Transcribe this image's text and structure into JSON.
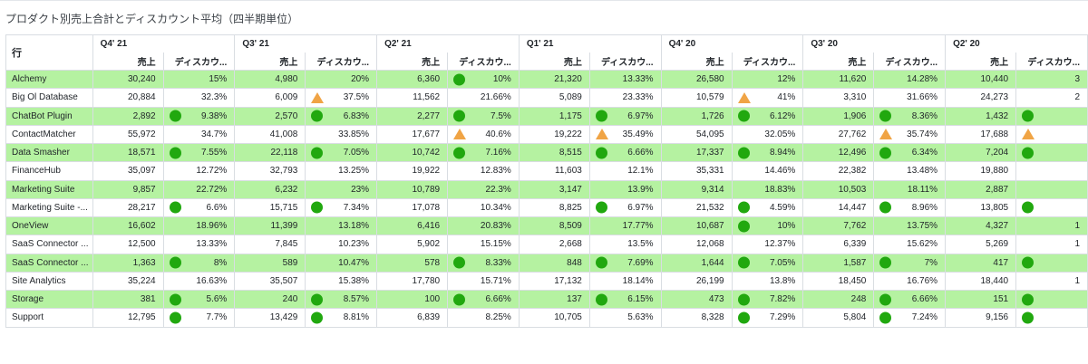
{
  "title": "プロダクト別売上合計とディスカウント平均（四半期単位）",
  "row_header": "行",
  "metric_labels": {
    "sales": "売上",
    "discount": "ディスカウ..."
  },
  "quarters": [
    "Q4' 21",
    "Q3' 21",
    "Q2' 21",
    "Q1' 21",
    "Q4' 20",
    "Q3' 20",
    "Q2' 20"
  ],
  "colors": {
    "row_highlight": "#b5f2a1",
    "good": "#21a80f",
    "warn": "#f0a445"
  },
  "rows": [
    {
      "label": "Alchemy",
      "highlight": true,
      "cells": [
        {
          "sales": "30,240",
          "disc": "15%",
          "icon": null
        },
        {
          "sales": "4,980",
          "disc": "20%",
          "icon": null
        },
        {
          "sales": "6,360",
          "disc": "10%",
          "icon": "good"
        },
        {
          "sales": "21,320",
          "disc": "13.33%",
          "icon": null
        },
        {
          "sales": "26,580",
          "disc": "12%",
          "icon": null
        },
        {
          "sales": "11,620",
          "disc": "14.28%",
          "icon": null
        },
        {
          "sales": "10,440",
          "disc": "3",
          "icon": null
        }
      ]
    },
    {
      "label": "Big Ol Database",
      "highlight": false,
      "cells": [
        {
          "sales": "20,884",
          "disc": "32.3%",
          "icon": null
        },
        {
          "sales": "6,009",
          "disc": "37.5%",
          "icon": "warn"
        },
        {
          "sales": "11,562",
          "disc": "21.66%",
          "icon": null
        },
        {
          "sales": "5,089",
          "disc": "23.33%",
          "icon": null
        },
        {
          "sales": "10,579",
          "disc": "41%",
          "icon": "warn"
        },
        {
          "sales": "3,310",
          "disc": "31.66%",
          "icon": null
        },
        {
          "sales": "24,273",
          "disc": "2",
          "icon": null
        }
      ]
    },
    {
      "label": "ChatBot Plugin",
      "highlight": true,
      "cells": [
        {
          "sales": "2,892",
          "disc": "9.38%",
          "icon": "good"
        },
        {
          "sales": "2,570",
          "disc": "6.83%",
          "icon": "good"
        },
        {
          "sales": "2,277",
          "disc": "7.5%",
          "icon": "good"
        },
        {
          "sales": "1,175",
          "disc": "6.97%",
          "icon": "good"
        },
        {
          "sales": "1,726",
          "disc": "6.12%",
          "icon": "good"
        },
        {
          "sales": "1,906",
          "disc": "8.36%",
          "icon": "good"
        },
        {
          "sales": "1,432",
          "disc": "",
          "icon": "good"
        }
      ]
    },
    {
      "label": "ContactMatcher",
      "highlight": false,
      "cells": [
        {
          "sales": "55,972",
          "disc": "34.7%",
          "icon": null
        },
        {
          "sales": "41,008",
          "disc": "33.85%",
          "icon": null
        },
        {
          "sales": "17,677",
          "disc": "40.6%",
          "icon": "warn"
        },
        {
          "sales": "19,222",
          "disc": "35.49%",
          "icon": "warn"
        },
        {
          "sales": "54,095",
          "disc": "32.05%",
          "icon": null
        },
        {
          "sales": "27,762",
          "disc": "35.74%",
          "icon": "warn"
        },
        {
          "sales": "17,688",
          "disc": "",
          "icon": "warn"
        }
      ]
    },
    {
      "label": "Data Smasher",
      "highlight": true,
      "cells": [
        {
          "sales": "18,571",
          "disc": "7.55%",
          "icon": "good"
        },
        {
          "sales": "22,118",
          "disc": "7.05%",
          "icon": "good"
        },
        {
          "sales": "10,742",
          "disc": "7.16%",
          "icon": "good"
        },
        {
          "sales": "8,515",
          "disc": "6.66%",
          "icon": "good"
        },
        {
          "sales": "17,337",
          "disc": "8.94%",
          "icon": "good"
        },
        {
          "sales": "12,496",
          "disc": "6.34%",
          "icon": "good"
        },
        {
          "sales": "7,204",
          "disc": "",
          "icon": "good"
        }
      ]
    },
    {
      "label": "FinanceHub",
      "highlight": false,
      "cells": [
        {
          "sales": "35,097",
          "disc": "12.72%",
          "icon": null
        },
        {
          "sales": "32,793",
          "disc": "13.25%",
          "icon": null
        },
        {
          "sales": "19,922",
          "disc": "12.83%",
          "icon": null
        },
        {
          "sales": "11,603",
          "disc": "12.1%",
          "icon": null
        },
        {
          "sales": "35,331",
          "disc": "14.46%",
          "icon": null
        },
        {
          "sales": "22,382",
          "disc": "13.48%",
          "icon": null
        },
        {
          "sales": "19,880",
          "disc": "",
          "icon": null
        }
      ]
    },
    {
      "label": "Marketing Suite",
      "highlight": true,
      "cells": [
        {
          "sales": "9,857",
          "disc": "22.72%",
          "icon": null
        },
        {
          "sales": "6,232",
          "disc": "23%",
          "icon": null
        },
        {
          "sales": "10,789",
          "disc": "22.3%",
          "icon": null
        },
        {
          "sales": "3,147",
          "disc": "13.9%",
          "icon": null
        },
        {
          "sales": "9,314",
          "disc": "18.83%",
          "icon": null
        },
        {
          "sales": "10,503",
          "disc": "18.11%",
          "icon": null
        },
        {
          "sales": "2,887",
          "disc": "",
          "icon": null
        }
      ]
    },
    {
      "label": "Marketing Suite -...",
      "highlight": false,
      "cells": [
        {
          "sales": "28,217",
          "disc": "6.6%",
          "icon": "good"
        },
        {
          "sales": "15,715",
          "disc": "7.34%",
          "icon": "good"
        },
        {
          "sales": "17,078",
          "disc": "10.34%",
          "icon": null
        },
        {
          "sales": "8,825",
          "disc": "6.97%",
          "icon": "good"
        },
        {
          "sales": "21,532",
          "disc": "4.59%",
          "icon": "good"
        },
        {
          "sales": "14,447",
          "disc": "8.96%",
          "icon": "good"
        },
        {
          "sales": "13,805",
          "disc": "",
          "icon": "good"
        }
      ]
    },
    {
      "label": "OneView",
      "highlight": true,
      "cells": [
        {
          "sales": "16,602",
          "disc": "18.96%",
          "icon": null
        },
        {
          "sales": "11,399",
          "disc": "13.18%",
          "icon": null
        },
        {
          "sales": "6,416",
          "disc": "20.83%",
          "icon": null
        },
        {
          "sales": "8,509",
          "disc": "17.77%",
          "icon": null
        },
        {
          "sales": "10,687",
          "disc": "10%",
          "icon": "good"
        },
        {
          "sales": "7,762",
          "disc": "13.75%",
          "icon": null
        },
        {
          "sales": "4,327",
          "disc": "1",
          "icon": null
        }
      ]
    },
    {
      "label": "SaaS Connector ...",
      "highlight": false,
      "cells": [
        {
          "sales": "12,500",
          "disc": "13.33%",
          "icon": null
        },
        {
          "sales": "7,845",
          "disc": "10.23%",
          "icon": null
        },
        {
          "sales": "5,902",
          "disc": "15.15%",
          "icon": null
        },
        {
          "sales": "2,668",
          "disc": "13.5%",
          "icon": null
        },
        {
          "sales": "12,068",
          "disc": "12.37%",
          "icon": null
        },
        {
          "sales": "6,339",
          "disc": "15.62%",
          "icon": null
        },
        {
          "sales": "5,269",
          "disc": "1",
          "icon": null
        }
      ]
    },
    {
      "label": "SaaS Connector ...",
      "highlight": true,
      "cells": [
        {
          "sales": "1,363",
          "disc": "8%",
          "icon": "good"
        },
        {
          "sales": "589",
          "disc": "10.47%",
          "icon": null
        },
        {
          "sales": "578",
          "disc": "8.33%",
          "icon": "good"
        },
        {
          "sales": "848",
          "disc": "7.69%",
          "icon": "good"
        },
        {
          "sales": "1,644",
          "disc": "7.05%",
          "icon": "good"
        },
        {
          "sales": "1,587",
          "disc": "7%",
          "icon": "good"
        },
        {
          "sales": "417",
          "disc": "",
          "icon": "good"
        }
      ]
    },
    {
      "label": "Site Analytics",
      "highlight": false,
      "cells": [
        {
          "sales": "35,224",
          "disc": "16.63%",
          "icon": null
        },
        {
          "sales": "35,507",
          "disc": "15.38%",
          "icon": null
        },
        {
          "sales": "17,780",
          "disc": "15.71%",
          "icon": null
        },
        {
          "sales": "17,132",
          "disc": "18.14%",
          "icon": null
        },
        {
          "sales": "26,199",
          "disc": "13.8%",
          "icon": null
        },
        {
          "sales": "18,450",
          "disc": "16.76%",
          "icon": null
        },
        {
          "sales": "18,440",
          "disc": "1",
          "icon": null
        }
      ]
    },
    {
      "label": "Storage",
      "highlight": true,
      "cells": [
        {
          "sales": "381",
          "disc": "5.6%",
          "icon": "good"
        },
        {
          "sales": "240",
          "disc": "8.57%",
          "icon": "good"
        },
        {
          "sales": "100",
          "disc": "6.66%",
          "icon": "good"
        },
        {
          "sales": "137",
          "disc": "6.15%",
          "icon": "good"
        },
        {
          "sales": "473",
          "disc": "7.82%",
          "icon": "good"
        },
        {
          "sales": "248",
          "disc": "6.66%",
          "icon": "good"
        },
        {
          "sales": "151",
          "disc": "",
          "icon": "good"
        }
      ]
    },
    {
      "label": "Support",
      "highlight": false,
      "cells": [
        {
          "sales": "12,795",
          "disc": "7.7%",
          "icon": "good"
        },
        {
          "sales": "13,429",
          "disc": "8.81%",
          "icon": "good"
        },
        {
          "sales": "6,839",
          "disc": "8.25%",
          "icon": null
        },
        {
          "sales": "10,705",
          "disc": "5.63%",
          "icon": null
        },
        {
          "sales": "8,328",
          "disc": "7.29%",
          "icon": "good"
        },
        {
          "sales": "5,804",
          "disc": "7.24%",
          "icon": "good"
        },
        {
          "sales": "9,156",
          "disc": "",
          "icon": "good"
        }
      ]
    }
  ]
}
